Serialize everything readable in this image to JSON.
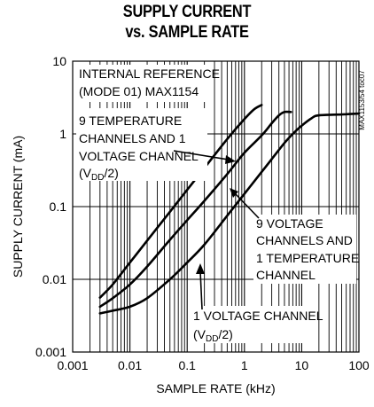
{
  "chart_data": {
    "type": "line",
    "title": "SUPPLY CURRENT",
    "subtitle": "vs. SAMPLE RATE",
    "xlabel": "SAMPLE RATE (kHz)",
    "ylabel": "SUPPLY CURRENT (mA)",
    "xscale": "log",
    "yscale": "log",
    "xlim": [
      0.001,
      100
    ],
    "ylim": [
      0.001,
      10
    ],
    "grid": true,
    "x_ticks": [
      "0.001",
      "0.01",
      "0.1",
      "1",
      "10",
      "100"
    ],
    "y_ticks": [
      "10",
      "1",
      "0.1",
      "0.01",
      "0.001"
    ],
    "figure_code": "MAX1153/54 toc07",
    "annotations": {
      "mode_line1": "INTERNAL REFERENCE",
      "mode_line2": "(MODE 01) MAX1154",
      "temp_line1": "9 TEMPERATURE",
      "temp_line2": "CHANNELS AND 1",
      "temp_line3": "VOLTAGE CHANNEL",
      "temp_line4_a": "(V",
      "temp_line4_sub": "DD",
      "temp_line4_b": "/2)",
      "volt_line1": "9 VOLTAGE",
      "volt_line2": "CHANNELS AND",
      "volt_line3": "1 TEMPERATURE",
      "volt_line4": "CHANNEL",
      "one_line1": "1 VOLTAGE CHANNEL",
      "one_line2_a": "(V",
      "one_line2_sub": "DD",
      "one_line2_b": "/2)"
    },
    "series": [
      {
        "x": [
          0.003,
          0.005,
          0.01,
          0.02,
          0.05,
          0.1,
          0.2,
          0.5,
          1,
          1.5,
          2
        ],
        "y": [
          0.0056,
          0.0085,
          0.017,
          0.034,
          0.085,
          0.17,
          0.34,
          0.85,
          1.6,
          2.2,
          2.5
        ]
      },
      {
        "x": [
          0.003,
          0.005,
          0.01,
          0.02,
          0.05,
          0.1,
          0.2,
          0.5,
          1,
          2,
          3,
          4,
          5,
          6.5
        ],
        "y": [
          0.0042,
          0.0055,
          0.0085,
          0.015,
          0.035,
          0.065,
          0.12,
          0.28,
          0.55,
          0.95,
          1.4,
          1.8,
          2.0,
          2.0
        ]
      },
      {
        "x": [
          0.003,
          0.005,
          0.01,
          0.02,
          0.05,
          0.1,
          0.2,
          0.5,
          1,
          2,
          3,
          5,
          7,
          10,
          15,
          20,
          50,
          100
        ],
        "y": [
          0.0034,
          0.0037,
          0.0042,
          0.0055,
          0.01,
          0.017,
          0.03,
          0.075,
          0.15,
          0.3,
          0.45,
          0.75,
          1.0,
          1.3,
          1.65,
          1.8,
          1.85,
          1.9
        ]
      }
    ]
  }
}
